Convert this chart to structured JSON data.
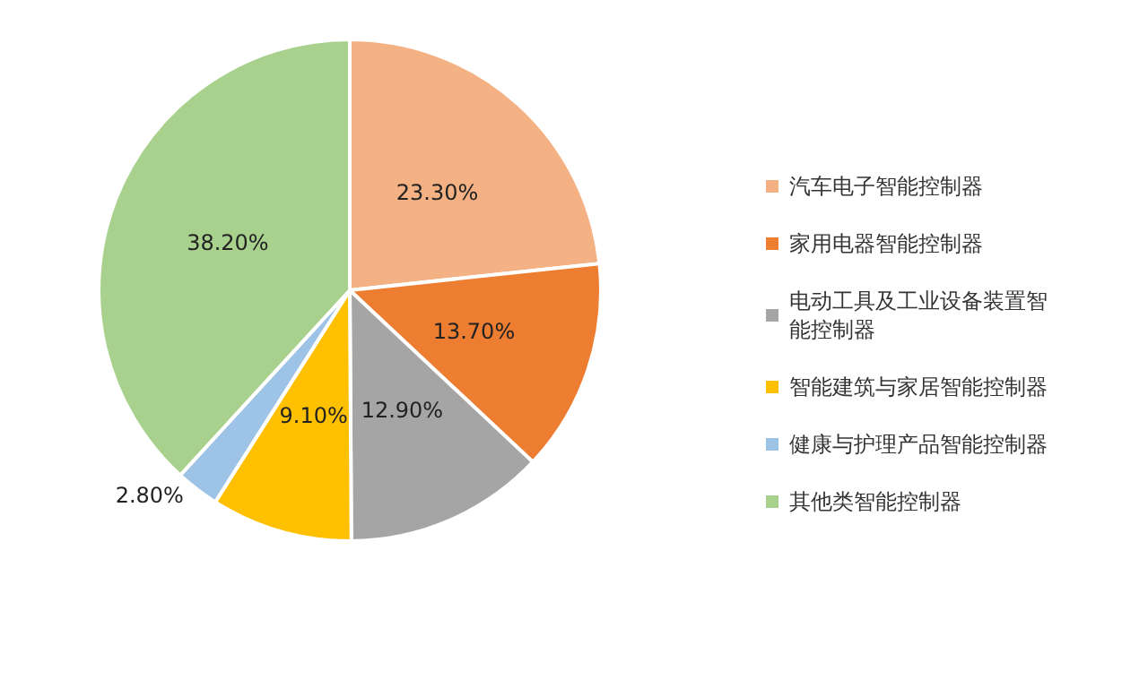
{
  "chart_data": {
    "type": "pie",
    "categories": [
      "汽车电子智能控制器",
      "家用电器智能控制器",
      "电动工具及工业设备装置智能控制器",
      "智能建筑与家居智能控制器",
      "健康与护理产品智能控制器",
      "其他类智能控制器"
    ],
    "values": [
      23.3,
      13.7,
      12.9,
      9.1,
      2.8,
      38.2
    ],
    "value_labels": [
      "23.30%",
      "13.70%",
      "12.90%",
      "9.10%",
      "2.80%",
      "38.20%"
    ],
    "colors": [
      "#f4b183",
      "#ed7d31",
      "#a5a5a5",
      "#ffc000",
      "#9dc3e6",
      "#a9d18e"
    ],
    "legend": "right"
  }
}
